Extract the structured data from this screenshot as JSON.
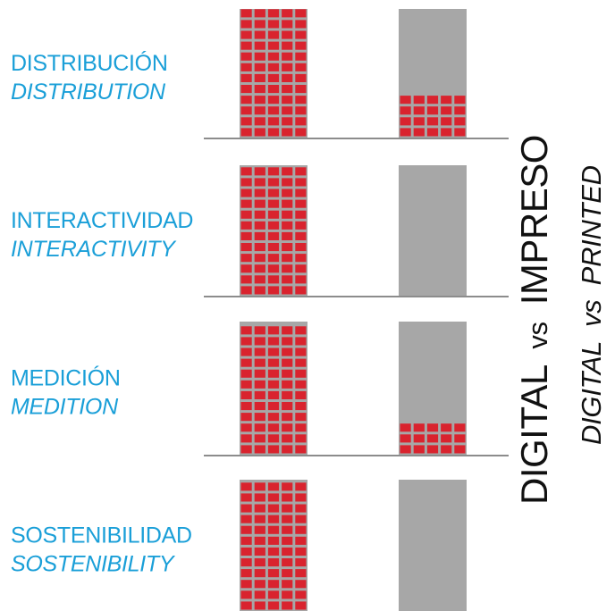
{
  "chart_data": {
    "type": "bar",
    "categories": [
      {
        "label": "DISTRIBUCIÓN",
        "label_en": "DISTRIBUTION"
      },
      {
        "label": "INTERACTIVIDAD",
        "label_en": "INTERACTIVITY"
      },
      {
        "label": "MEDICIÓN",
        "label_en": "MEDITION"
      },
      {
        "label": "SOSTENIBILIDAD",
        "label_en": "SOSTENIBILITY"
      }
    ],
    "series": [
      {
        "name": "DIGITAL",
        "values": [
          1.0,
          1.0,
          1.0,
          1.0
        ]
      },
      {
        "name": "IMPRESO",
        "values": [
          0.33,
          0.0,
          0.22,
          0.0
        ]
      }
    ],
    "ylim": [
      0,
      1
    ],
    "title": "DIGITAL vs IMPRESO",
    "title_parts": {
      "left": "DIGITAL",
      "middle": "vs",
      "right": "IMPRESO"
    },
    "subtitle": "DIGITAL vs PRINTED",
    "subtitle_parts": {
      "left": "DIGITAL",
      "middle": "vs",
      "right": "PRINTED"
    },
    "colors": {
      "label": "#1a9fd8",
      "fill": "#d9232e",
      "grid": "#a7a7a7",
      "empty": "#a7a7a7",
      "baseline": "#8c8c8c",
      "title": "#111111"
    }
  }
}
